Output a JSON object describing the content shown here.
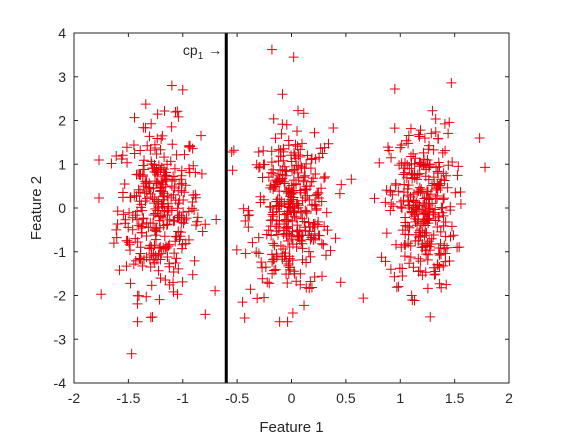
{
  "chart_data": {
    "type": "scatter",
    "xlabel": "Feature 1",
    "ylabel": "Feature 2",
    "xlim": [
      -2,
      2
    ],
    "ylim": [
      -4,
      4
    ],
    "xticks": [
      -2,
      -1.5,
      -1,
      -0.5,
      0,
      0.5,
      1,
      1.5,
      2
    ],
    "yticks": [
      -4,
      -3,
      -2,
      -1,
      0,
      1,
      2,
      3,
      4
    ],
    "xtick_labels": [
      "-2",
      "-1.5",
      "-1",
      "-0.5",
      "0",
      "0.5",
      "1",
      "1.5",
      "2"
    ],
    "ytick_labels": [
      "-4",
      "-3",
      "-2",
      "-1",
      "0",
      "1",
      "2",
      "3",
      "4"
    ],
    "grid": false,
    "marker": "+",
    "marker_color": "#e8000b",
    "line_color": "#000000",
    "vline": {
      "x": -0.6,
      "label_main": "cp",
      "label_sub": "1",
      "label_arrow": "→"
    },
    "clusters": [
      {
        "center": [
          -1.22,
          0.0
        ],
        "spread": [
          0.19,
          0.95
        ],
        "count": 320
      },
      {
        "center": [
          0.0,
          -0.1
        ],
        "spread": [
          0.19,
          0.95
        ],
        "count": 340
      },
      {
        "center": [
          1.2,
          0.0
        ],
        "spread": [
          0.15,
          0.95
        ],
        "count": 300
      }
    ],
    "outliers": [
      [
        -0.18,
        3.62
      ],
      [
        0.02,
        3.45
      ],
      [
        -1.47,
        -3.33
      ],
      [
        1.47,
        2.86
      ],
      [
        -1.75,
        -1.97
      ],
      [
        -0.55,
        1.28
      ],
      [
        -0.53,
        1.32
      ],
      [
        0.95,
        2.72
      ],
      [
        0.66,
        -2.06
      ],
      [
        1.78,
        0.93
      ],
      [
        -1.0,
        2.7
      ],
      [
        -1.1,
        2.8
      ],
      [
        1.73,
        1.6
      ],
      [
        -0.45,
        -2.15
      ],
      [
        0.34,
        1.47
      ]
    ]
  }
}
